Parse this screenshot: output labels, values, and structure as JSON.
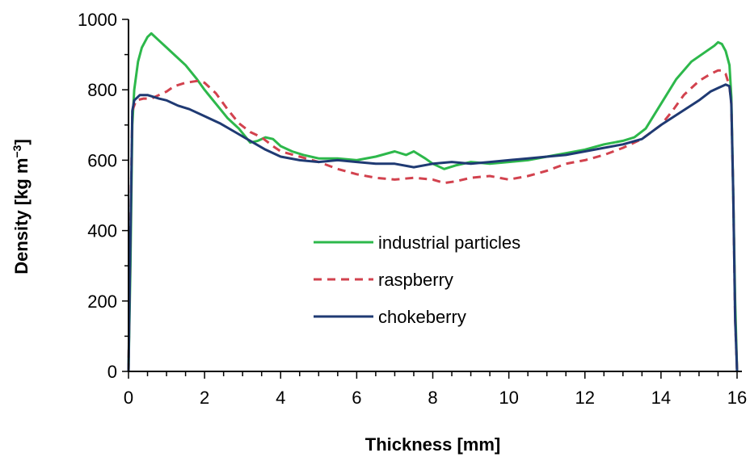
{
  "chart_data": {
    "type": "line",
    "title": "",
    "xlabel": "Thickness [mm]",
    "ylabel_main": "Density [kg m",
    "ylabel_sup": "−3",
    "ylabel_close": "]",
    "xlim": [
      0,
      16
    ],
    "ylim": [
      0,
      1000
    ],
    "x_ticks": [
      0,
      2,
      4,
      6,
      8,
      10,
      12,
      14,
      16
    ],
    "x_tick_labels": [
      "0",
      "2",
      "4",
      "6",
      "8",
      "10",
      "12",
      "14",
      "16"
    ],
    "y_ticks": [
      0,
      200,
      400,
      600,
      800,
      1000
    ],
    "y_tick_labels": [
      "0",
      "200",
      "400",
      "600",
      "800",
      "1000"
    ],
    "grid": false,
    "legend_position": "center",
    "series": [
      {
        "name": "industrial particles",
        "color": "#2db84b",
        "dash": "solid",
        "x": [
          0.0,
          0.05,
          0.1,
          0.15,
          0.25,
          0.35,
          0.5,
          0.6,
          0.8,
          1.0,
          1.2,
          1.5,
          1.8,
          2.0,
          2.3,
          2.6,
          2.9,
          3.2,
          3.4,
          3.6,
          3.8,
          4.0,
          4.3,
          4.6,
          5.0,
          5.5,
          6.0,
          6.5,
          7.0,
          7.3,
          7.5,
          7.8,
          8.0,
          8.3,
          8.6,
          9.0,
          9.5,
          10.0,
          10.5,
          11.0,
          11.5,
          12.0,
          12.5,
          13.0,
          13.3,
          13.6,
          14.0,
          14.4,
          14.8,
          15.2,
          15.4,
          15.5,
          15.6,
          15.7,
          15.8,
          15.85,
          15.9,
          15.95,
          16.0
        ],
        "y": [
          0,
          300,
          700,
          800,
          880,
          920,
          950,
          960,
          940,
          920,
          900,
          870,
          830,
          800,
          760,
          720,
          690,
          650,
          655,
          665,
          660,
          640,
          625,
          615,
          605,
          605,
          600,
          610,
          625,
          615,
          625,
          605,
          590,
          575,
          585,
          595,
          590,
          595,
          600,
          610,
          620,
          630,
          645,
          655,
          665,
          690,
          760,
          830,
          880,
          910,
          925,
          935,
          930,
          910,
          870,
          780,
          500,
          200,
          0
        ]
      },
      {
        "name": "raspberry",
        "color": "#d2424e",
        "dash": "dashed",
        "x": [
          0.0,
          0.05,
          0.1,
          0.2,
          0.4,
          0.6,
          0.8,
          1.0,
          1.2,
          1.5,
          1.8,
          2.0,
          2.3,
          2.6,
          2.9,
          3.2,
          3.5,
          3.8,
          4.0,
          4.5,
          5.0,
          5.5,
          6.0,
          6.5,
          7.0,
          7.5,
          8.0,
          8.3,
          8.6,
          9.0,
          9.5,
          10.0,
          10.5,
          11.0,
          11.5,
          12.0,
          12.5,
          13.0,
          13.5,
          14.0,
          14.3,
          14.6,
          15.0,
          15.3,
          15.5,
          15.6,
          15.7,
          15.8,
          15.85,
          15.9,
          15.95,
          16.0
        ],
        "y": [
          0,
          400,
          740,
          770,
          775,
          775,
          785,
          795,
          810,
          820,
          825,
          820,
          790,
          745,
          705,
          680,
          665,
          640,
          625,
          610,
          595,
          575,
          560,
          550,
          545,
          550,
          545,
          535,
          540,
          550,
          555,
          545,
          555,
          570,
          590,
          600,
          615,
          635,
          660,
          700,
          740,
          785,
          825,
          845,
          855,
          855,
          845,
          810,
          760,
          500,
          150,
          0
        ]
      },
      {
        "name": "chokeberry",
        "color": "#1f3a73",
        "dash": "solid",
        "x": [
          0.0,
          0.05,
          0.1,
          0.15,
          0.3,
          0.5,
          0.8,
          1.0,
          1.3,
          1.6,
          2.0,
          2.4,
          2.8,
          3.2,
          3.6,
          4.0,
          4.5,
          5.0,
          5.5,
          6.0,
          6.5,
          7.0,
          7.5,
          8.0,
          8.5,
          9.0,
          9.5,
          10.0,
          10.5,
          11.0,
          11.5,
          12.0,
          12.5,
          13.0,
          13.5,
          14.0,
          14.5,
          15.0,
          15.3,
          15.5,
          15.7,
          15.8,
          15.85,
          15.9,
          15.95,
          16.0
        ],
        "y": [
          0,
          380,
          740,
          770,
          785,
          785,
          775,
          770,
          755,
          745,
          725,
          705,
          680,
          655,
          630,
          610,
          600,
          595,
          600,
          595,
          590,
          590,
          580,
          590,
          595,
          590,
          595,
          600,
          605,
          610,
          615,
          625,
          635,
          645,
          660,
          700,
          735,
          770,
          795,
          805,
          815,
          810,
          760,
          500,
          150,
          0
        ]
      }
    ]
  }
}
